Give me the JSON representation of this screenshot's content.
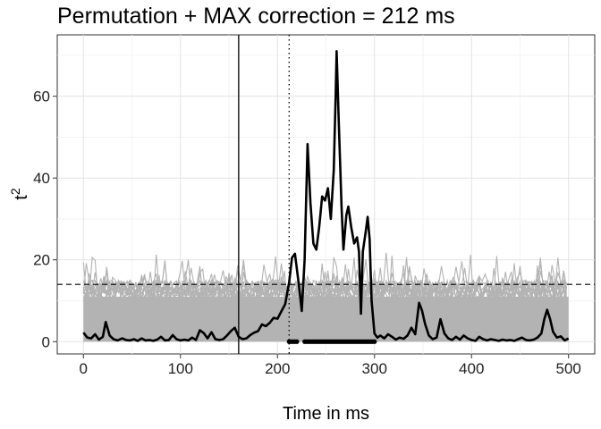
{
  "chart_data": {
    "type": "line",
    "title": "Permutation + MAX correction = 212 ms",
    "xlabel": "Time in ms",
    "ylabel_base": "t",
    "ylabel_superscript": "2",
    "xlim": [
      -27,
      527
    ],
    "ylim": [
      -3,
      75
    ],
    "xticks": [
      0,
      100,
      200,
      300,
      400,
      500
    ],
    "yticks": [
      0,
      20,
      40,
      60
    ],
    "grid": true,
    "vertical_lines": [
      {
        "x": 160,
        "style": "solid"
      },
      {
        "x": 212,
        "style": "dotted"
      }
    ],
    "threshold": {
      "y": 14,
      "style": "dashed"
    },
    "permutation_band": {
      "color": "#b3b3b3",
      "x_range": [
        0,
        500
      ],
      "envelope_mean_upper": 11,
      "envelope_max_upper": 20
    },
    "significant_points": {
      "y": 0,
      "ranges": [
        [
          212,
          220
        ],
        [
          228,
          300
        ]
      ]
    },
    "series": [
      {
        "color": "#000000",
        "points": [
          [
            0,
            2.2
          ],
          [
            4,
            1.0
          ],
          [
            8,
            0.8
          ],
          [
            12,
            1.8
          ],
          [
            16,
            0.5
          ],
          [
            20,
            1.2
          ],
          [
            23,
            4.8
          ],
          [
            27,
            1.5
          ],
          [
            31,
            0.6
          ],
          [
            35,
            0.3
          ],
          [
            40,
            0.8
          ],
          [
            44,
            0.4
          ],
          [
            48,
            0.3
          ],
          [
            52,
            0.6
          ],
          [
            56,
            0.2
          ],
          [
            60,
            0.8
          ],
          [
            64,
            0.3
          ],
          [
            68,
            0.4
          ],
          [
            72,
            0.2
          ],
          [
            76,
            0.5
          ],
          [
            80,
            1.2
          ],
          [
            84,
            0.3
          ],
          [
            88,
            0.4
          ],
          [
            92,
            1.6
          ],
          [
            96,
            0.6
          ],
          [
            100,
            0.3
          ],
          [
            104,
            0.5
          ],
          [
            108,
            0.3
          ],
          [
            112,
            1.0
          ],
          [
            116,
            0.4
          ],
          [
            120,
            2.8
          ],
          [
            124,
            2.1
          ],
          [
            128,
            0.8
          ],
          [
            132,
            2.3
          ],
          [
            136,
            0.6
          ],
          [
            140,
            0.4
          ],
          [
            144,
            0.6
          ],
          [
            148,
            1.5
          ],
          [
            152,
            2.6
          ],
          [
            156,
            3.4
          ],
          [
            160,
            1.2
          ],
          [
            164,
            0.6
          ],
          [
            168,
            0.8
          ],
          [
            172,
            1.6
          ],
          [
            176,
            2.2
          ],
          [
            180,
            2.6
          ],
          [
            184,
            4.2
          ],
          [
            188,
            3.8
          ],
          [
            192,
            4.6
          ],
          [
            196,
            5.8
          ],
          [
            200,
            5.6
          ],
          [
            204,
            7.4
          ],
          [
            208,
            9.2
          ],
          [
            212,
            14.5
          ],
          [
            215,
            20.5
          ],
          [
            218,
            21.5
          ],
          [
            222,
            14.0
          ],
          [
            225,
            7.5
          ],
          [
            228,
            20.0
          ],
          [
            231,
            48.3
          ],
          [
            234,
            34.0
          ],
          [
            237,
            24.0
          ],
          [
            240,
            22.5
          ],
          [
            243,
            28.0
          ],
          [
            246,
            35.5
          ],
          [
            249,
            34.5
          ],
          [
            252,
            37.5
          ],
          [
            255,
            30.0
          ],
          [
            258,
            42.0
          ],
          [
            260,
            60.0
          ],
          [
            261,
            71.0
          ],
          [
            263,
            55.0
          ],
          [
            266,
            33.0
          ],
          [
            268,
            22.5
          ],
          [
            271,
            31.0
          ],
          [
            273,
            33.0
          ],
          [
            276,
            28.0
          ],
          [
            279,
            24.0
          ],
          [
            282,
            25.5
          ],
          [
            284,
            22.0
          ],
          [
            286,
            6.8
          ],
          [
            288,
            22.0
          ],
          [
            291,
            27.0
          ],
          [
            293,
            30.5
          ],
          [
            295,
            25.0
          ],
          [
            297,
            10.0
          ],
          [
            300,
            2.0
          ],
          [
            303,
            1.0
          ],
          [
            306,
            1.5
          ],
          [
            310,
            0.8
          ],
          [
            314,
            1.8
          ],
          [
            318,
            1.2
          ],
          [
            322,
            0.5
          ],
          [
            326,
            1.0
          ],
          [
            330,
            0.7
          ],
          [
            334,
            1.5
          ],
          [
            338,
            3.4
          ],
          [
            342,
            1.8
          ],
          [
            346,
            9.5
          ],
          [
            349,
            7.6
          ],
          [
            352,
            4.4
          ],
          [
            356,
            1.5
          ],
          [
            360,
            0.6
          ],
          [
            364,
            1.0
          ],
          [
            368,
            5.5
          ],
          [
            372,
            2.0
          ],
          [
            376,
            0.8
          ],
          [
            380,
            0.4
          ],
          [
            384,
            1.2
          ],
          [
            388,
            0.5
          ],
          [
            392,
            1.5
          ],
          [
            396,
            0.8
          ],
          [
            400,
            0.4
          ],
          [
            404,
            0.2
          ],
          [
            408,
            1.2
          ],
          [
            412,
            0.6
          ],
          [
            416,
            0.3
          ],
          [
            420,
            0.6
          ],
          [
            424,
            0.4
          ],
          [
            428,
            0.2
          ],
          [
            432,
            0.5
          ],
          [
            436,
            0.3
          ],
          [
            440,
            0.4
          ],
          [
            444,
            0.2
          ],
          [
            448,
            0.6
          ],
          [
            452,
            1.0
          ],
          [
            456,
            0.4
          ],
          [
            460,
            0.3
          ],
          [
            464,
            0.5
          ],
          [
            468,
            1.0
          ],
          [
            472,
            2.0
          ],
          [
            475,
            5.5
          ],
          [
            478,
            7.8
          ],
          [
            481,
            5.5
          ],
          [
            484,
            2.4
          ],
          [
            488,
            1.0
          ],
          [
            492,
            1.3
          ],
          [
            496,
            0.3
          ],
          [
            500,
            0.8
          ]
        ]
      }
    ]
  }
}
